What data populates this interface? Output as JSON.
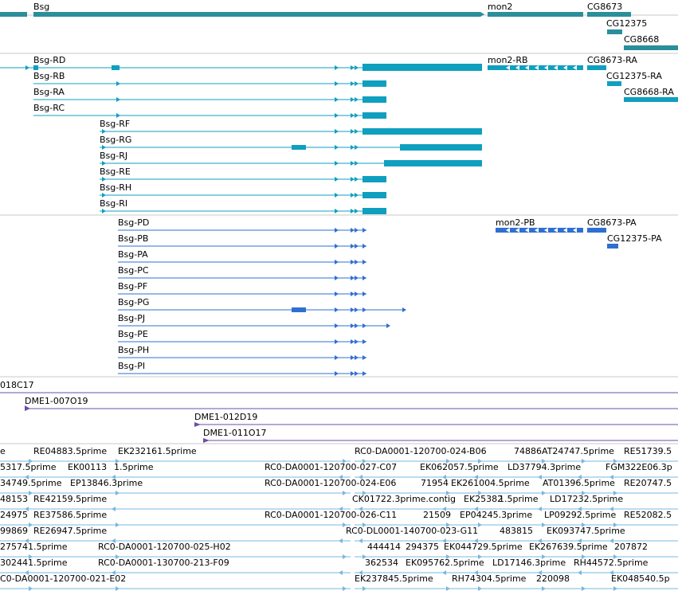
{
  "colors": {
    "gene": "#2a8f99",
    "transcript": "#0f9fbf",
    "cds": "#2f6fd2",
    "clone": "#6a4fa6",
    "est": "#78b8e0",
    "separator": "#c9c9c9"
  },
  "gene_track": {
    "labels": [
      "Bsg",
      "mon2",
      "CG8673",
      "CG12375",
      "CG8668"
    ]
  },
  "transcript_track": {
    "labels": [
      "Bsg-RD",
      "mon2-RB",
      "CG8673-RA",
      "Bsg-RB",
      "CG12375-RA",
      "Bsg-RA",
      "CG8668-RA",
      "Bsg-RC",
      "Bsg-RF",
      "Bsg-RG",
      "Bsg-RJ",
      "Bsg-RE",
      "Bsg-RH",
      "Bsg-RI"
    ]
  },
  "cds_track": {
    "labels": [
      "Bsg-PD",
      "mon2-PB",
      "CG8673-PA",
      "Bsg-PB",
      "CG12375-PA",
      "Bsg-PA",
      "Bsg-PC",
      "Bsg-PF",
      "Bsg-PG",
      "Bsg-PJ",
      "Bsg-PE",
      "Bsg-PH",
      "Bsg-PI"
    ]
  },
  "clone_track": {
    "labels": [
      "018C17",
      "DME1-007O19",
      "DME1-012D19",
      "DME1-011O17"
    ]
  },
  "est_track": {
    "labels": [
      "e",
      "RE04883.5prime",
      "EK232161.5prime",
      "RC0-DA0001-120700-024-B06",
      "74886",
      "AT24747.5prime",
      "RE51739.5",
      "5317.5prime",
      "EK00113",
      "1.5prime",
      "RC0-DA0001-120700-027-C07",
      "EK062057.5prime",
      "LD37794.3prime",
      "FGM322E06.3p",
      "34749.5prime",
      "EP13846.3prime",
      "RC0-DA0001-120700-024-E06",
      "71954",
      "EK261004.5prime",
      "AT01396.5prime",
      "RE20747.5",
      "48153",
      "RE42159.5prime",
      "CK01722.3prime.contig",
      "EK25382",
      "1.5prime",
      "LD17232.5prime",
      "24975",
      "RE37586.5prime",
      "RC0-DA0001-120700-026-C11",
      "21509",
      "EP04245.3prime",
      "LP09292.5prime",
      "RE52082.5",
      "99869",
      "RE26947.5prime",
      "RC0-DL0001-140700-023-G11",
      "483815",
      "EK093747.5prime",
      "275741.5prime",
      "RC0-DA0001-120700-025-H02",
      "444414",
      "294375",
      "EK044729.5prime",
      "EK267639.5prime",
      "207872",
      "302441.5prime",
      "RC0-DA0001-130700-213-F09",
      "362534",
      "EK095762.5prime",
      "LD17146.3prime",
      "RH44572.5prime",
      "C0-DA0001-120700-021-E02",
      "EK237845.5prime",
      "RH74304.5prime",
      "220098",
      "EK048540.5p"
    ]
  }
}
